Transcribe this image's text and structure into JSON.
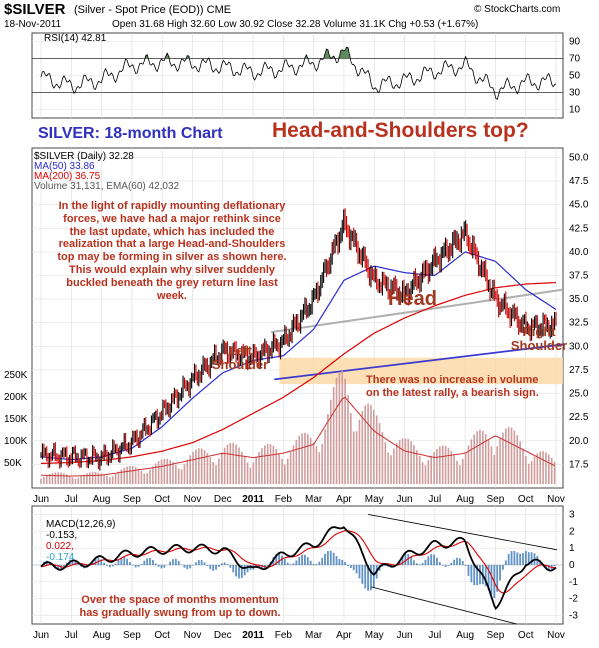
{
  "header": {
    "symbol": "$SILVER",
    "symbol_desc": "(Silver - Spot Price (EOD))",
    "exchange": "CME",
    "copyright": "© StockCharts.com",
    "date": "18-Nov-2011",
    "ohlc": "Open 31.68  High 32.60  Low 30.92  Close 32.28  Volume 31.1K  Chg +0.53 (+1.67%)"
  },
  "rsi": {
    "label": "RSI(14) 42.81",
    "ticks": [
      90,
      70,
      50,
      30,
      10
    ],
    "levels": [
      70,
      30
    ]
  },
  "price": {
    "legend": [
      "$SILVER (Daily) 32.28",
      "MA(50) 33.86",
      "MA(200) 36.75",
      "Volume 31,131, EMA(60) 42,032"
    ],
    "ticks": [
      50.0,
      47.5,
      45.0,
      42.5,
      40.0,
      37.5,
      35.0,
      32.5,
      30.0,
      27.5,
      25.0,
      22.5,
      20.0,
      17.5
    ],
    "tick_labels": [
      "50.0",
      "47.5",
      "45.0",
      "42.5",
      "40.0",
      "37.5",
      "35.0",
      "32.5",
      "30.0",
      "27.5",
      "25.0",
      "22.5",
      "20.0",
      "17.5"
    ],
    "volume_ticks": [
      "250K",
      "200K",
      "150K",
      "100K",
      "50K"
    ],
    "colors": {
      "up": "#000000",
      "down": "#cc0000",
      "ma50": "#2b2bd0",
      "ma200": "#dd0000",
      "volume": "#d09c9c",
      "zone": "#fbd9a8",
      "return_line": "#b0b0b0",
      "neckline": "#3a3ad0"
    }
  },
  "macd": {
    "label": "MACD(12,26,9)",
    "v1": "-0.153,",
    "v2": "0.022,",
    "v3": "-0.174",
    "ticks": [
      "3",
      "2",
      "1",
      "0",
      "-1",
      "-2",
      "-3"
    ]
  },
  "xaxis": {
    "labels": [
      "Jun",
      "Jul",
      "Aug",
      "Sep",
      "Oct",
      "Nov",
      "Dec",
      "2011",
      "Feb",
      "Mar",
      "Apr",
      "May",
      "Jun",
      "Jul",
      "Aug",
      "Sep",
      "Oct",
      "Nov"
    ]
  },
  "annotations": {
    "chart_title": "SILVER: 18-month Chart",
    "hs_title": "Head-and-Shoulders top?",
    "commentary": "In the light of rapidly mounting deflationary\nforces, we have had a major rethink since\nthe last update, which has included the\nrealization that a large Head-and-Shoulders\ntop may be forming in silver as shown here.\nThis would explain why silver suddenly\nbuckled beneath the grey return line last\nweek.",
    "head": "Head",
    "left_shoulder": "Left\nShoulder",
    "right_shoulder": "Right\nShoulder",
    "volume_note": "There was no increase in volume\non the latest rally, a bearish sign.",
    "macd_note": "Over the space of months momentum\nhas gradually swung from up to down."
  },
  "chart_data": {
    "type": "line",
    "title": "SILVER: 18-month Chart",
    "x": [
      "Jun",
      "Jul",
      "Aug",
      "Sep",
      "Oct",
      "Nov",
      "Dec",
      "2011",
      "Feb",
      "Mar",
      "Apr",
      "May",
      "Jun",
      "Jul",
      "Aug",
      "Sep",
      "Oct",
      "Nov"
    ],
    "series": [
      {
        "name": "$SILVER (Daily) 32.28",
        "values": [
          18.5,
          18.3,
          18.2,
          19.8,
          23.0,
          26.5,
          29.5,
          28.8,
          30.5,
          35.0,
          43.0,
          37.0,
          35.5,
          39.0,
          42.0,
          35.0,
          32.0,
          32.3
        ]
      },
      {
        "name": "MA(50) 33.86",
        "values": [
          18.3,
          18.0,
          18.3,
          19.2,
          21.5,
          24.5,
          27.2,
          28.5,
          29.0,
          31.8,
          37.0,
          38.5,
          37.8,
          37.5,
          40.0,
          39.0,
          36.0,
          33.9
        ]
      },
      {
        "name": "MA(200) 36.75",
        "values": [
          17.6,
          17.7,
          17.9,
          18.3,
          18.9,
          19.8,
          21.2,
          22.9,
          24.6,
          26.7,
          29.2,
          31.4,
          33.0,
          34.3,
          35.4,
          36.2,
          36.6,
          36.75
        ]
      }
    ],
    "ylim": [
      15,
      51
    ],
    "rsi": {
      "label": "RSI(14) 42.81",
      "values": [
        48,
        38,
        45,
        62,
        66,
        64,
        60,
        54,
        58,
        65,
        78,
        38,
        44,
        55,
        62,
        32,
        42,
        43
      ],
      "ylim": [
        0,
        100
      ]
    },
    "volume": {
      "label": "Volume 31,131, EMA(60) 42,032",
      "values": [
        20,
        18,
        20,
        30,
        40,
        55,
        70,
        60,
        70,
        90,
        200,
        120,
        75,
        60,
        70,
        110,
        75,
        40
      ],
      "unit": "K"
    },
    "macd": {
      "label": "MACD(12,26,9) -0.153, 0.022, -0.174",
      "values": [
        -0.1,
        0.0,
        0.3,
        0.7,
        0.9,
        1.0,
        0.9,
        -0.4,
        0.6,
        1.2,
        2.5,
        -0.5,
        0.5,
        1.2,
        1.4,
        -2.4,
        0.2,
        -0.15
      ],
      "ylim": [
        -3.5,
        3.5
      ]
    }
  }
}
